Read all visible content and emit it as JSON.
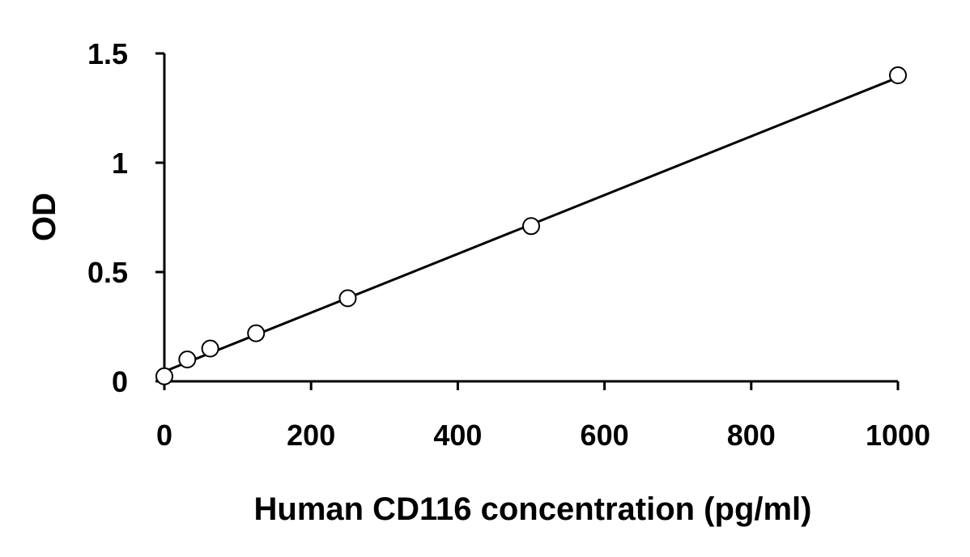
{
  "chart_data": {
    "type": "scatter",
    "title": "",
    "xlabel": "Human CD116 concentration (pg/ml)",
    "ylabel": "OD",
    "xlim": [
      0,
      1000
    ],
    "ylim": [
      0,
      1.5
    ],
    "x_ticks": [
      0,
      200,
      400,
      600,
      800,
      1000
    ],
    "y_ticks": [
      0,
      0.5,
      1,
      1.5
    ],
    "x_tick_labels": [
      "0",
      "200",
      "400",
      "600",
      "800",
      "1000"
    ],
    "y_tick_labels": [
      "0",
      "0.5",
      "1",
      "1.5"
    ],
    "grid": false,
    "legend": "none",
    "marker": "open-circle",
    "series": [
      {
        "x": [
          0,
          31.25,
          62.5,
          125,
          250,
          500,
          1000
        ],
        "y": [
          0.023,
          0.1,
          0.15,
          0.22,
          0.38,
          0.71,
          1.4
        ]
      }
    ],
    "trendline": {
      "type": "linear",
      "x": [
        0,
        1000
      ],
      "y": [
        0.045,
        1.39
      ]
    },
    "colors": {
      "axis": "#000000",
      "marker_stroke": "#000000",
      "marker_fill": "#ffffff",
      "line": "#000000"
    }
  }
}
